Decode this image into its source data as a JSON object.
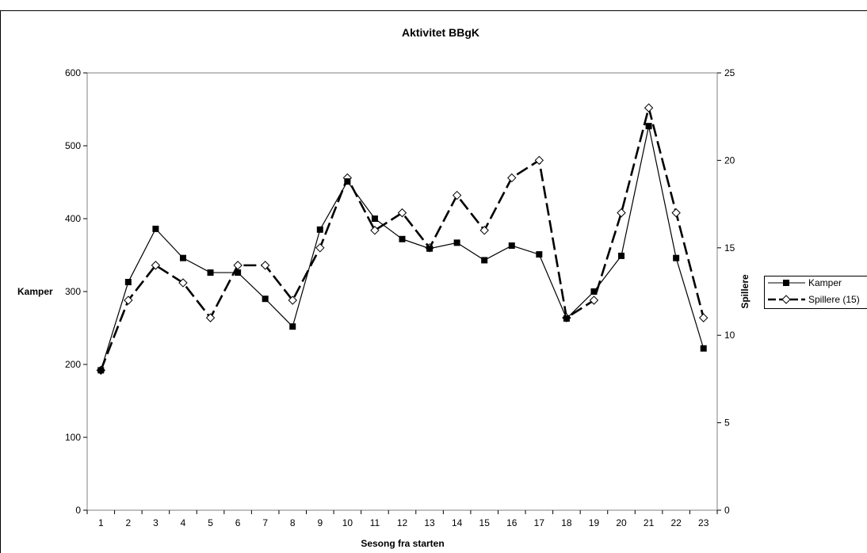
{
  "chart_data": {
    "type": "line",
    "title": "Aktivitet BBgK",
    "xlabel": "Sesong fra starten",
    "ylabel": "Kamper",
    "y2label": "Spillere",
    "categories": [
      "1",
      "2",
      "3",
      "4",
      "5",
      "6",
      "7",
      "8",
      "9",
      "10",
      "11",
      "12",
      "13",
      "14",
      "15",
      "16",
      "17",
      "18",
      "19",
      "20",
      "21",
      "22",
      "23"
    ],
    "ylim": [
      0,
      600
    ],
    "y2lim": [
      0,
      25
    ],
    "yticks": [
      "0",
      "100",
      "200",
      "300",
      "400",
      "500",
      "600"
    ],
    "y2ticks": [
      "0",
      "5",
      "10",
      "15",
      "20",
      "25"
    ],
    "legend_position": "right",
    "series": [
      {
        "name": "Kamper",
        "axis": "left",
        "style": "solid",
        "marker": "filled-square",
        "values": [
          192,
          313,
          386,
          346,
          326,
          326,
          290,
          252,
          385,
          451,
          400,
          372,
          359,
          367,
          343,
          363,
          351,
          263,
          300,
          349,
          527,
          346,
          222
        ]
      },
      {
        "name": "Spillere (15)",
        "axis": "right",
        "style": "dashed",
        "marker": "open-diamond",
        "values": [
          8,
          12,
          14,
          13,
          11,
          14,
          14,
          12,
          15,
          19,
          16,
          17,
          15,
          18,
          16,
          19,
          20,
          11,
          12,
          17,
          23,
          17,
          11
        ]
      }
    ]
  }
}
